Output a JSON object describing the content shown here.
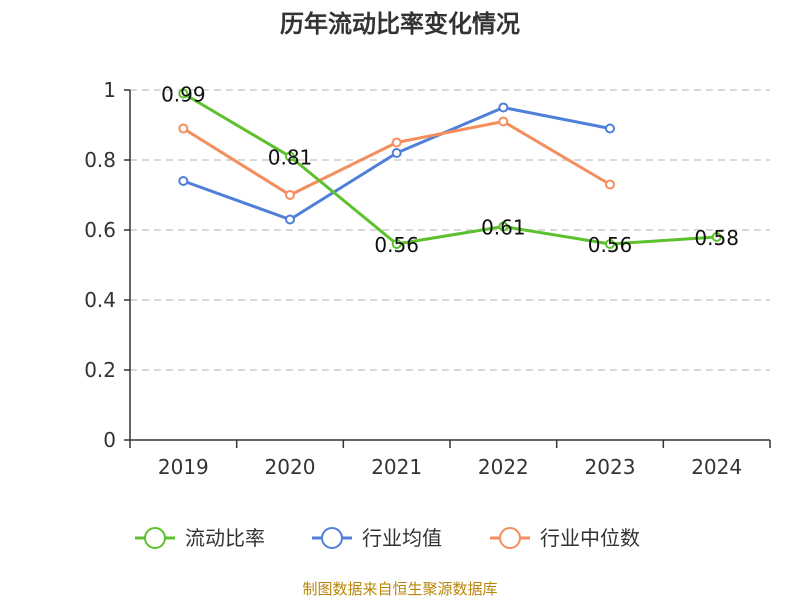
{
  "chart_data": {
    "type": "line",
    "title": "历年流动比率变化情况",
    "categories": [
      "2019",
      "2020",
      "2021",
      "2022",
      "2023",
      "2024"
    ],
    "ylim": [
      0,
      1
    ],
    "yticks": [
      0,
      0.2,
      0.4,
      0.6,
      0.8,
      1
    ],
    "ytick_labels": [
      "0",
      "0.2",
      "0.4",
      "0.6",
      "0.8",
      "1"
    ],
    "grid": true,
    "legend_position": "bottom",
    "series": [
      {
        "name": "流动比率",
        "color": "#5cc12c",
        "values": [
          0.99,
          0.81,
          0.56,
          0.61,
          0.56,
          0.58
        ],
        "labels": [
          "0.99",
          "0.81",
          "0.56",
          "0.61",
          "0.56",
          "0.58"
        ]
      },
      {
        "name": "行业均值",
        "color": "#4f7fd9",
        "values": [
          0.74,
          0.63,
          0.82,
          0.95,
          0.89,
          null
        ],
        "labels": null
      },
      {
        "name": "行业中位数",
        "color": "#f58d5c",
        "values": [
          0.89,
          0.7,
          0.85,
          0.91,
          0.73,
          null
        ],
        "labels": null
      }
    ]
  },
  "source_text": "制图数据来自恒生聚源数据库"
}
